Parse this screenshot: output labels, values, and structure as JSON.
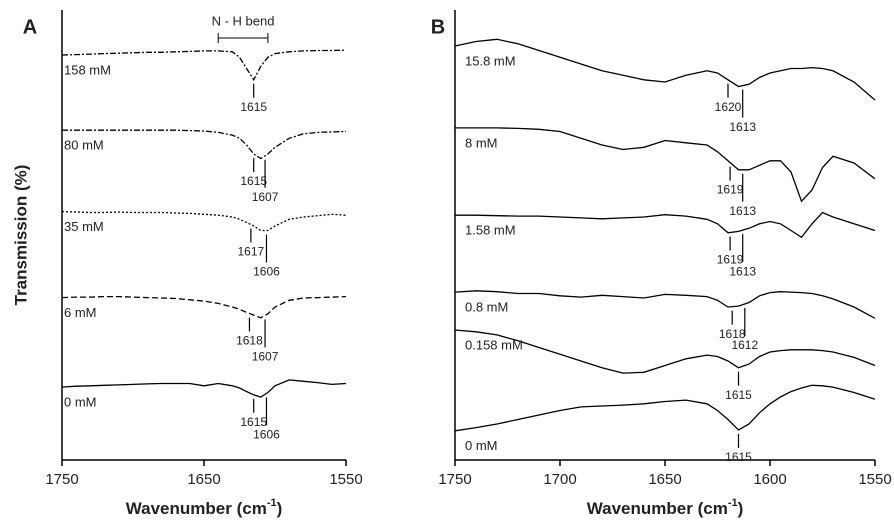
{
  "chart_data": [
    {
      "type": "line",
      "label": "A",
      "ylabel": "Transmission (%)",
      "xlabel": {
        "text": "Wavenumber (cm",
        "sup": "-1",
        "tail": ")"
      },
      "annotation": {
        "text": "N - H bend",
        "x": [
          1640,
          1605
        ]
      },
      "xlim": [
        1750,
        1550
      ],
      "xticks": [
        1750,
        1650,
        1550
      ],
      "ylim": [
        0,
        100
      ],
      "x": [
        1750,
        1740,
        1730,
        1720,
        1710,
        1700,
        1690,
        1680,
        1670,
        1660,
        1650,
        1640,
        1630,
        1625,
        1620,
        1615,
        1610,
        1605,
        1600,
        1590,
        1580,
        1570,
        1560,
        1550
      ],
      "series": [
        {
          "name": "158 mM",
          "color": "#000000",
          "linestyle": "dashdot",
          "peaks": [
            1615
          ],
          "values": [
            90,
            90.1,
            90.2,
            90.3,
            90.4,
            90.5,
            90.6,
            90.6,
            90.7,
            90.8,
            90.9,
            90.9,
            90.7,
            89.5,
            87,
            84.5,
            87.5,
            89.5,
            90.3,
            90.7,
            90.9,
            91,
            91,
            91.1
          ]
        },
        {
          "name": "80 mM",
          "color": "#000000",
          "linestyle": "dashdot",
          "peaks": [
            1615,
            1607
          ],
          "values": [
            73.3,
            73.3,
            73.3,
            73.3,
            73.3,
            73.3,
            73.3,
            73.3,
            73.3,
            73.2,
            73.1,
            72.8,
            72.2,
            71.5,
            70,
            68,
            67,
            68,
            69.5,
            71.5,
            72.5,
            72.8,
            72.9,
            73
          ]
        },
        {
          "name": "35 mM",
          "color": "#000000",
          "linestyle": "dotted",
          "peaks": [
            1617,
            1606
          ],
          "values": [
            55.2,
            55.1,
            55,
            55,
            55.1,
            55,
            55,
            55,
            54.9,
            54.8,
            54.6,
            54.4,
            54,
            53.5,
            52.8,
            52,
            51,
            51,
            52,
            53.5,
            54,
            54.3,
            54.6,
            54.4
          ]
        },
        {
          "name": "6 mM",
          "color": "#000000",
          "linestyle": "dashed",
          "peaks": [
            1618,
            1607
          ],
          "values": [
            36.1,
            36.2,
            36.2,
            36.3,
            36.3,
            36.2,
            36.1,
            36,
            35.9,
            35.6,
            35.3,
            34.8,
            34,
            33.5,
            32.8,
            32.2,
            31.6,
            32.5,
            34,
            35.5,
            36,
            36.1,
            36.2,
            36.3
          ]
        },
        {
          "name": "0 mM",
          "color": "#000000",
          "linestyle": "solid",
          "peaks": [
            1615,
            1606
          ],
          "values": [
            16.2,
            16.4,
            16.5,
            16.6,
            16.7,
            16.8,
            16.9,
            17,
            17,
            17,
            16.5,
            17,
            16.5,
            16,
            15.2,
            14.5,
            14,
            15,
            16.5,
            17.8,
            17.5,
            17.2,
            16.8,
            17
          ]
        }
      ]
    },
    {
      "type": "line",
      "label": "B",
      "xlabel": {
        "text": "Wavenumber (cm",
        "sup": "-1",
        "tail": ")"
      },
      "xlim": [
        1750,
        1550
      ],
      "xticks": [
        1750,
        1700,
        1650,
        1600,
        1550
      ],
      "ylim": [
        0,
        100
      ],
      "x": [
        1750,
        1740,
        1730,
        1720,
        1710,
        1700,
        1690,
        1680,
        1670,
        1660,
        1650,
        1640,
        1630,
        1625,
        1620,
        1615,
        1610,
        1605,
        1600,
        1595,
        1590,
        1585,
        1580,
        1575,
        1570,
        1560,
        1550
      ],
      "series": [
        {
          "name": "15.8 mM",
          "color": "#000000",
          "linestyle": "solid",
          "peaks": [
            1620,
            1613
          ],
          "values": [
            92,
            93,
            93.5,
            92.5,
            91,
            89.5,
            88,
            86.5,
            85.5,
            84.5,
            84,
            85.5,
            86.5,
            86,
            84.5,
            83,
            83.5,
            85,
            86,
            86.5,
            87,
            87,
            87.2,
            87,
            86.5,
            84,
            80
          ]
        },
        {
          "name": "8 mM",
          "color": "#000000",
          "linestyle": "solid",
          "peaks": [
            1619,
            1613
          ],
          "values": [
            73.8,
            73.8,
            73.8,
            73.7,
            73.5,
            73,
            71.5,
            70,
            69,
            69.5,
            71,
            70.5,
            70,
            68.5,
            66.5,
            64.5,
            64.5,
            65.5,
            66.5,
            66.5,
            64,
            57.5,
            60,
            65,
            67.5,
            66,
            62.5
          ]
        },
        {
          "name": "1.58 mM",
          "color": "#000000",
          "linestyle": "solid",
          "peaks": [
            1619,
            1613
          ],
          "values": [
            54.4,
            54.4,
            54.3,
            54.2,
            54.2,
            54,
            53.8,
            53.6,
            53.8,
            54,
            54.5,
            54.2,
            53.5,
            52.5,
            50.5,
            50.8,
            51.5,
            52.5,
            53,
            52.5,
            51,
            49.5,
            52.5,
            55,
            54,
            52.5,
            51
          ]
        },
        {
          "name": "0.8 mM",
          "color": "#000000",
          "linestyle": "solid",
          "peaks": [
            1618,
            1612
          ],
          "values": [
            37.3,
            37.6,
            37.4,
            37,
            37,
            36.5,
            36.2,
            36.6,
            36.3,
            36,
            36.8,
            36.6,
            36.3,
            35.5,
            34,
            34.2,
            35,
            36.5,
            37.2,
            37.4,
            37.3,
            37.2,
            37,
            36.5,
            35.8,
            34,
            31.5
          ]
        },
        {
          "name": "0.158 mM",
          "color": "#000000",
          "linestyle": "solid",
          "peaks": [
            1615
          ],
          "values": [
            28.9,
            28.5,
            27.8,
            26.5,
            25,
            23.5,
            22,
            20.5,
            19.3,
            19.5,
            21,
            22.5,
            23.3,
            23,
            22,
            20.5,
            21.3,
            23,
            24,
            24.3,
            24.5,
            24.5,
            24.5,
            24.3,
            24,
            22.8,
            21
          ]
        },
        {
          "name": "0 mM",
          "color": "#000000",
          "linestyle": "solid",
          "peaks": [
            1615
          ],
          "values": [
            6.5,
            7.2,
            8,
            9,
            10,
            11,
            11.8,
            12,
            12.2,
            12.5,
            13,
            13.3,
            12.5,
            11,
            9,
            6.7,
            8,
            10.5,
            12.5,
            14,
            15.2,
            16,
            16.6,
            16.5,
            16.2,
            15,
            13.5
          ]
        }
      ]
    }
  ]
}
